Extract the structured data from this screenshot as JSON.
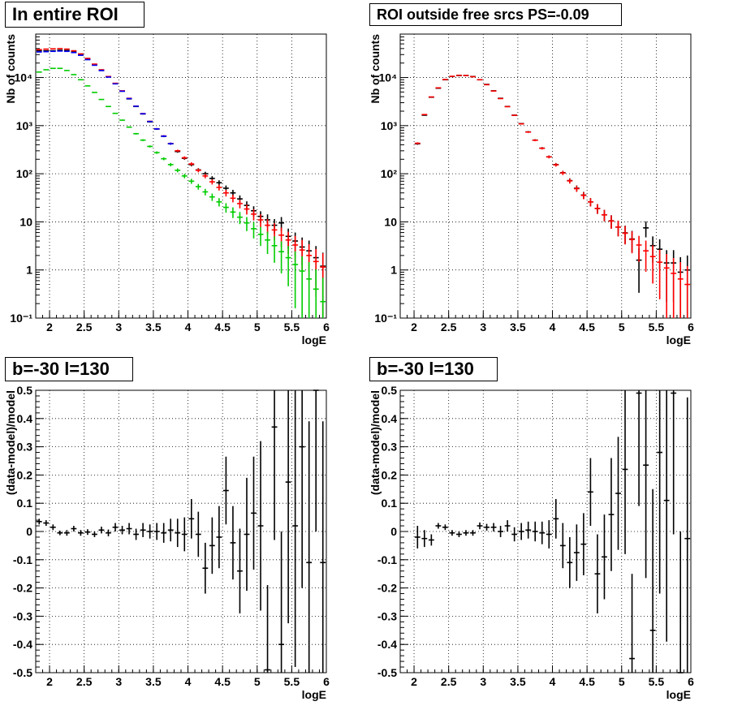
{
  "chart_data": [
    {
      "type": "scatter",
      "title": "In entire ROI",
      "xlabel": "logE",
      "ylabel": "Nb of counts",
      "xlim": [
        1.8,
        6.0
      ],
      "ylim": [
        0.1,
        80000
      ],
      "yscale": "log",
      "xticks": [
        "2",
        "2.5",
        "3",
        "3.5",
        "4",
        "4.5",
        "5",
        "5.5",
        "6"
      ],
      "yticks": [
        {
          "value": 0.1,
          "label": "10⁻¹"
        },
        {
          "value": 1,
          "label": "1"
        },
        {
          "value": 10,
          "label": "10"
        },
        {
          "value": 100,
          "label": "10²"
        },
        {
          "value": 1000,
          "label": "10³"
        },
        {
          "value": 10000,
          "label": "10⁴"
        }
      ],
      "grid": true,
      "series": [
        {
          "color": "#000000",
          "x": [
            1.85,
            1.95,
            2.05,
            2.15,
            2.25,
            2.35,
            2.45,
            2.55,
            2.65,
            2.75,
            2.85,
            2.95,
            3.05,
            3.15,
            3.25,
            3.35,
            3.45,
            3.55,
            3.65,
            3.75,
            3.85,
            3.95,
            4.05,
            4.15,
            4.25,
            4.35,
            4.45,
            4.55,
            4.65,
            4.75,
            4.85,
            4.95,
            5.05,
            5.15,
            5.25,
            5.35,
            5.45,
            5.55,
            5.65,
            5.75,
            5.85,
            5.95
          ],
          "y": [
            36000,
            36000,
            36000,
            37000,
            36500,
            34000,
            30000,
            24000,
            18500,
            14000,
            10500,
            7500,
            5200,
            3600,
            2500,
            1750,
            1200,
            850,
            600,
            420,
            290,
            210,
            155,
            120,
            100,
            80,
            65,
            50,
            40,
            30,
            22,
            17,
            13,
            11,
            8.5,
            9.5,
            5,
            4,
            3,
            2.5,
            1.8,
            1.2
          ]
        },
        {
          "color": "#ff0000",
          "x": [
            1.85,
            1.95,
            2.05,
            2.15,
            2.25,
            2.35,
            2.45,
            2.55,
            2.65,
            2.75,
            2.85,
            2.95,
            3.05,
            3.15,
            3.25,
            3.35,
            3.45,
            3.55,
            3.65,
            3.75,
            3.85,
            3.95,
            4.05,
            4.15,
            4.25,
            4.35,
            4.45,
            4.55,
            4.65,
            4.75,
            4.85,
            4.95,
            5.05,
            5.15,
            5.25,
            5.35,
            5.45,
            5.55,
            5.65,
            5.75,
            5.85,
            5.95
          ],
          "y": [
            38000,
            39000,
            39500,
            40000,
            39000,
            36000,
            31000,
            25000,
            19000,
            14500,
            10500,
            7600,
            5300,
            3700,
            2550,
            1780,
            1230,
            860,
            610,
            425,
            300,
            215,
            160,
            118,
            90,
            68,
            52,
            40,
            31,
            24,
            18.5,
            14.5,
            11,
            8.5,
            6.8,
            5.3,
            4.2,
            3.3,
            2.6,
            2.0,
            1.5,
            1.15
          ]
        },
        {
          "color": "#0000ff",
          "x": [
            1.85,
            1.95,
            2.05,
            2.15,
            2.25,
            2.35,
            2.45,
            2.55,
            2.65,
            2.75,
            2.85,
            2.95,
            3.05,
            3.15,
            3.25,
            3.35,
            3.45,
            3.55,
            3.65,
            3.75
          ],
          "y": [
            34000,
            34500,
            35000,
            35500,
            35000,
            33000,
            29000,
            23500,
            18000,
            14000,
            10200,
            7400,
            5200,
            3650,
            2530,
            1770,
            1220,
            855,
            605,
            422
          ]
        },
        {
          "color": "#00cc00",
          "x": [
            1.85,
            1.95,
            2.05,
            2.15,
            2.25,
            2.35,
            2.45,
            2.55,
            2.65,
            2.75,
            2.85,
            2.95,
            3.05,
            3.15,
            3.25,
            3.35,
            3.45,
            3.55,
            3.65,
            3.75,
            3.85,
            3.95,
            4.05,
            4.15,
            4.25,
            4.35,
            4.45,
            4.55,
            4.65,
            4.75,
            4.85,
            4.95,
            5.05,
            5.15,
            5.25,
            5.35,
            5.45,
            5.55,
            5.65,
            5.75,
            5.85,
            5.95
          ],
          "y": [
            13000,
            14500,
            15500,
            15500,
            14000,
            11500,
            9000,
            6700,
            4900,
            3500,
            2500,
            1800,
            1300,
            930,
            680,
            500,
            370,
            275,
            205,
            155,
            118,
            90,
            70,
            54,
            42,
            33,
            26,
            20,
            16,
            12.5,
            9.5,
            7.2,
            5.5,
            4.2,
            3.2,
            2.4,
            1.8,
            1.3,
            0.95,
            0.65,
            0.4,
            0.22
          ]
        }
      ]
    },
    {
      "type": "scatter",
      "title": "ROI outside free srcs PS=-0.09",
      "xlabel": "logE",
      "ylabel": "Nb of counts",
      "xlim": [
        1.8,
        6.0
      ],
      "ylim": [
        0.1,
        80000
      ],
      "yscale": "log",
      "xticks": [
        "2",
        "2.5",
        "3",
        "3.5",
        "4",
        "4.5",
        "5",
        "5.5",
        "6"
      ],
      "yticks": [
        {
          "value": 0.1,
          "label": "10⁻¹"
        },
        {
          "value": 1,
          "label": "1"
        },
        {
          "value": 10,
          "label": "10"
        },
        {
          "value": 100,
          "label": "10²"
        },
        {
          "value": 1000,
          "label": "10³"
        },
        {
          "value": 10000,
          "label": "10⁴"
        }
      ],
      "grid": true,
      "series": [
        {
          "color": "#000000",
          "x": [
            2.05,
            2.15,
            2.25,
            2.35,
            2.45,
            2.55,
            2.65,
            2.75,
            2.85,
            2.95,
            3.05,
            3.15,
            3.25,
            3.35,
            3.45,
            3.55,
            3.65,
            3.75,
            3.85,
            3.95,
            4.05,
            4.15,
            4.25,
            4.35,
            4.45,
            4.55,
            4.65,
            4.75,
            4.85,
            4.95,
            5.05,
            5.15,
            5.25,
            5.35,
            5.45,
            5.55,
            5.65,
            5.75,
            5.85,
            5.95
          ],
          "y": [
            420,
            1650,
            3900,
            6000,
            9000,
            10500,
            11000,
            11000,
            10500,
            9000,
            7200,
            5300,
            3700,
            2500,
            1650,
            1100,
            740,
            500,
            340,
            225,
            155,
            105,
            72,
            50,
            36,
            26,
            19,
            14,
            10.5,
            7.8,
            5.9,
            4.4,
            1.6,
            7.5,
            3.2,
            2.7,
            1.4,
            1.4,
            0.9,
            1.0
          ]
        },
        {
          "color": "#ff0000",
          "x": [
            2.05,
            2.15,
            2.25,
            2.35,
            2.45,
            2.55,
            2.65,
            2.75,
            2.85,
            2.95,
            3.05,
            3.15,
            3.25,
            3.35,
            3.45,
            3.55,
            3.65,
            3.75,
            3.85,
            3.95,
            4.05,
            4.15,
            4.25,
            4.35,
            4.45,
            4.55,
            4.65,
            4.75,
            4.85,
            4.95,
            5.05,
            5.15,
            5.25,
            5.35,
            5.45,
            5.55,
            5.65,
            5.75,
            5.85,
            5.95
          ],
          "y": [
            430,
            1700,
            3950,
            6100,
            9100,
            10600,
            11100,
            11000,
            10400,
            9000,
            7100,
            5250,
            3650,
            2480,
            1640,
            1090,
            735,
            497,
            338,
            224,
            153,
            104,
            71,
            49,
            35.5,
            26,
            19,
            14,
            10.4,
            7.8,
            5.8,
            4.3,
            3.3,
            2.5,
            1.9,
            1.45,
            1.1,
            0.85,
            0.65,
            0.5
          ]
        }
      ]
    },
    {
      "type": "scatter",
      "title": "b=-30 l=130",
      "xlabel": "logE",
      "ylabel": "(data-model)/model",
      "xlim": [
        1.8,
        6.0
      ],
      "ylim": [
        -0.5,
        0.5
      ],
      "xticks": [
        "2",
        "2.5",
        "3",
        "3.5",
        "4",
        "4.5",
        "5",
        "5.5",
        "6"
      ],
      "yticks": [
        "-0.5",
        "-0.4",
        "-0.3",
        "-0.2",
        "-0.1",
        "0",
        "0.1",
        "0.2",
        "0.3",
        "0.4",
        "0.5"
      ],
      "grid": true,
      "series": [
        {
          "color": "#000000",
          "x": [
            1.85,
            1.95,
            2.05,
            2.15,
            2.25,
            2.35,
            2.45,
            2.55,
            2.65,
            2.75,
            2.85,
            2.95,
            3.05,
            3.15,
            3.25,
            3.35,
            3.45,
            3.55,
            3.65,
            3.75,
            3.85,
            3.95,
            4.05,
            4.15,
            4.25,
            4.35,
            4.45,
            4.55,
            4.65,
            4.75,
            4.85,
            4.95,
            5.05,
            5.15,
            5.25,
            5.35,
            5.45,
            5.55,
            5.65,
            5.75,
            5.85,
            5.95
          ],
          "y": [
            0.035,
            0.03,
            0.015,
            -0.005,
            -0.005,
            0.01,
            -0.005,
            -0.002,
            -0.01,
            0.005,
            -0.005,
            0.015,
            0.005,
            0.01,
            -0.01,
            0.005,
            0.0,
            0.0,
            -0.005,
            0.005,
            -0.005,
            -0.01,
            0.045,
            -0.01,
            -0.13,
            -0.05,
            -0.02,
            0.145,
            -0.04,
            -0.14,
            -0.01,
            0.065,
            0.02,
            -0.49,
            0.37,
            -0.4,
            0.175,
            0.02,
            0.3,
            -0.11,
            0.5,
            -0.11
          ],
          "err": [
            0.01,
            0.01,
            0.01,
            0.008,
            0.01,
            0.01,
            0.01,
            0.01,
            0.01,
            0.012,
            0.012,
            0.015,
            0.015,
            0.02,
            0.02,
            0.025,
            0.025,
            0.03,
            0.035,
            0.04,
            0.05,
            0.06,
            0.07,
            0.08,
            0.09,
            0.1,
            0.11,
            0.12,
            0.13,
            0.15,
            0.2,
            0.2,
            0.3,
            0.3,
            0.4,
            0.4,
            0.5,
            0.5,
            0.5,
            0.5,
            0.5,
            0.5
          ]
        }
      ]
    },
    {
      "type": "scatter",
      "title": "b=-30 l=130",
      "xlabel": "logE",
      "ylabel": "(data-model)/model",
      "xlim": [
        1.8,
        6.0
      ],
      "ylim": [
        -0.5,
        0.5
      ],
      "xticks": [
        "2",
        "2.5",
        "3",
        "3.5",
        "4",
        "4.5",
        "5",
        "5.5",
        "6"
      ],
      "yticks": [
        "-0.5",
        "-0.4",
        "-0.3",
        "-0.2",
        "-0.1",
        "0",
        "0.1",
        "0.2",
        "0.3",
        "0.4",
        "0.5"
      ],
      "grid": true,
      "series": [
        {
          "color": "#000000",
          "x": [
            2.05,
            2.15,
            2.25,
            2.35,
            2.45,
            2.55,
            2.65,
            2.75,
            2.85,
            2.95,
            3.05,
            3.15,
            3.25,
            3.35,
            3.45,
            3.55,
            3.65,
            3.75,
            3.85,
            3.95,
            4.05,
            4.15,
            4.25,
            4.35,
            4.45,
            4.55,
            4.65,
            4.75,
            4.85,
            4.95,
            5.05,
            5.15,
            5.25,
            5.35,
            5.45,
            5.55,
            5.65,
            5.75,
            5.85,
            5.95
          ],
          "y": [
            -0.02,
            -0.025,
            -0.03,
            0.02,
            0.015,
            -0.005,
            -0.01,
            -0.005,
            -0.005,
            0.02,
            0.015,
            0.015,
            0.0,
            0.02,
            -0.01,
            0.0,
            0.005,
            0.0,
            -0.005,
            -0.01,
            0.045,
            -0.05,
            -0.11,
            -0.075,
            -0.045,
            0.14,
            -0.15,
            -0.09,
            0.06,
            0.135,
            0.22,
            -0.45,
            0.49,
            0.235,
            -0.35,
            0.28,
            0.11,
            0.49,
            -0.5,
            -0.025
          ],
          "err": [
            0.04,
            0.03,
            0.02,
            0.01,
            0.01,
            0.01,
            0.01,
            0.01,
            0.01,
            0.012,
            0.012,
            0.015,
            0.02,
            0.02,
            0.025,
            0.03,
            0.03,
            0.035,
            0.04,
            0.05,
            0.07,
            0.08,
            0.09,
            0.1,
            0.11,
            0.12,
            0.14,
            0.15,
            0.2,
            0.2,
            0.3,
            0.3,
            0.4,
            0.4,
            0.5,
            0.5,
            0.5,
            0.5,
            0.5,
            0.5
          ]
        }
      ]
    }
  ]
}
